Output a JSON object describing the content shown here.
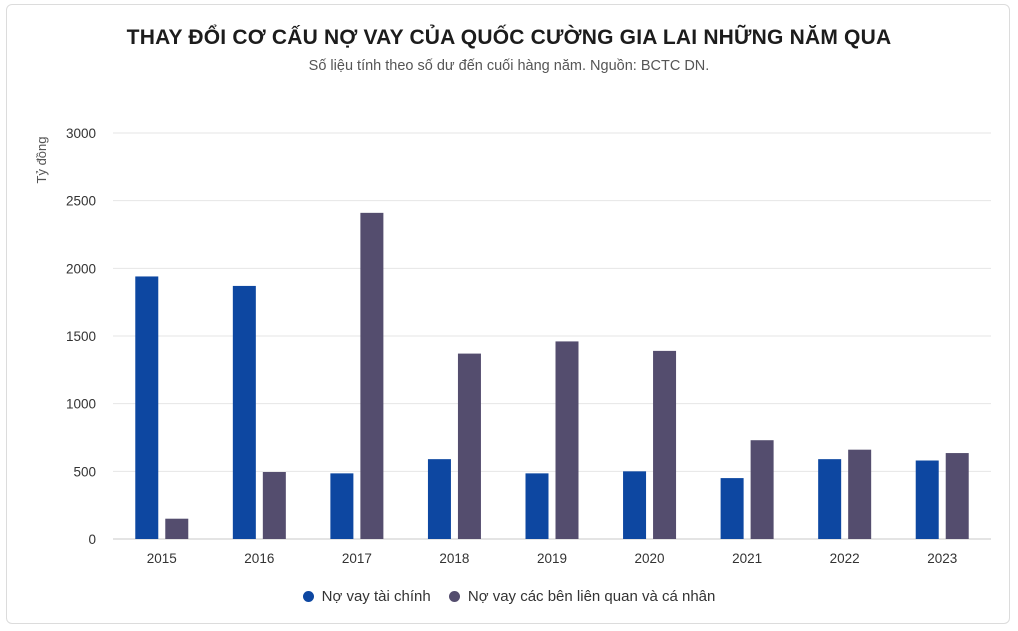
{
  "chart_data": {
    "type": "bar",
    "title": "THAY ĐỔI CƠ CẤU NỢ VAY CỦA QUỐC CƯỜNG GIA LAI NHỮNG NĂM QUA",
    "subtitle": "Số liệu tính theo số dư đến cuối hàng năm. Nguồn: BCTC DN.",
    "ylabel": "Tỷ đồng",
    "xlabel": "",
    "ylim": [
      0,
      3000
    ],
    "yticks": [
      0,
      500,
      1000,
      1500,
      2000,
      2500,
      3000
    ],
    "grid": true,
    "legend_position": "bottom",
    "categories": [
      "2015",
      "2016",
      "2017",
      "2018",
      "2019",
      "2020",
      "2021",
      "2022",
      "2023"
    ],
    "series": [
      {
        "name": "Nợ vay tài chính",
        "color": "#0d47a1",
        "values": [
          1940,
          1870,
          485,
          590,
          485,
          500,
          450,
          590,
          580
        ]
      },
      {
        "name": "Nợ vay các bên liên quan và cá nhân",
        "color": "#544d6e",
        "values": [
          150,
          495,
          2410,
          1370,
          1460,
          1390,
          730,
          660,
          635
        ]
      }
    ]
  }
}
